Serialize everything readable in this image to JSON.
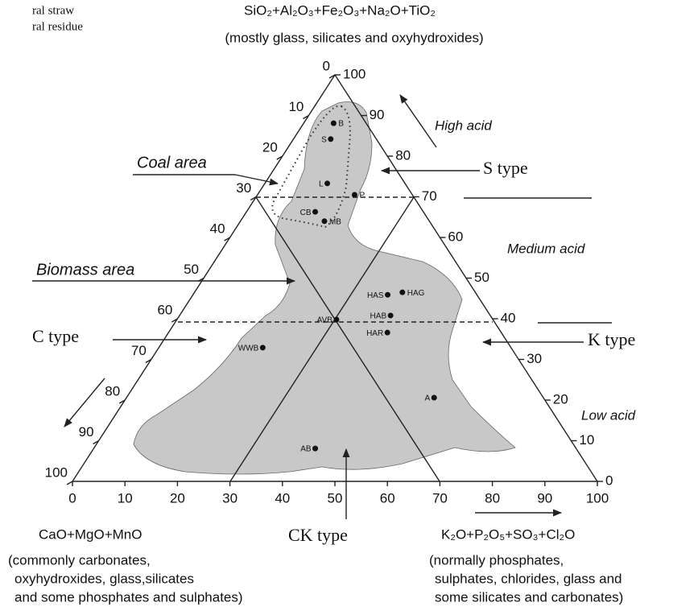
{
  "legend_fragments": [
    "ral straw",
    "ral residue"
  ],
  "top_vertex": {
    "label": "SiO₂+Al₂O₃+Fe₂O₃+Na₂O+TiO₂",
    "description": "(mostly glass, silicates and oxyhydroxides)"
  },
  "left_vertex": {
    "label": "CaO+MgO+MnO",
    "description": [
      "(commonly carbonates,",
      "oxyhydroxides, glass,silicates",
      "and some phosphates and sulphates)"
    ]
  },
  "right_vertex": {
    "label": "K₂O+P₂O₅+SO₃+Cl₂O",
    "description": [
      "(normally phosphates,",
      "sulphates, chlorides, glass and",
      "some silicates and carbonates)"
    ]
  },
  "left_ticks": [
    0,
    10,
    20,
    30,
    40,
    50,
    60,
    70,
    80,
    90,
    100
  ],
  "right_ticks": [
    0,
    10,
    20,
    30,
    40,
    50,
    60,
    70,
    80,
    90,
    100
  ],
  "bottom_ticks": [
    0,
    10,
    20,
    30,
    40,
    50,
    60,
    70,
    80,
    90,
    100
  ],
  "zones": {
    "high": "High acid",
    "medium": "Medium acid",
    "low": "Low acid"
  },
  "areas": {
    "coal": "Coal area",
    "biomass": "Biomass area"
  },
  "types": {
    "s": "S type",
    "c": "C type",
    "k": "K type",
    "ck": "CK type"
  },
  "points": [
    {
      "label": "B",
      "top": 88.1,
      "right": 5.7
    },
    {
      "label": "S",
      "top": 84.2,
      "right": 7.1
    },
    {
      "label": "L",
      "top": 73.3,
      "right": 11.9
    },
    {
      "label": "P",
      "top": 70.5,
      "right": 18.5
    },
    {
      "label": "CB",
      "top": 66.3,
      "right": 13.1
    },
    {
      "label": "MB",
      "top": 64.0,
      "right": 16.0
    },
    {
      "label": "HAS",
      "top": 45.9,
      "right": 37.1
    },
    {
      "label": "HAG",
      "top": 46.5,
      "right": 39.6
    },
    {
      "label": "AVB",
      "top": 39.8,
      "right": 30.4
    },
    {
      "label": "HAB",
      "top": 40.8,
      "right": 40.2
    },
    {
      "label": "HAR",
      "top": 36.6,
      "right": 41.7
    },
    {
      "label": "WWB",
      "top": 32.9,
      "right": 19.8
    },
    {
      "label": "A",
      "top": 20.6,
      "right": 58.6
    },
    {
      "label": "AB",
      "top": 8.1,
      "right": 42.2
    }
  ]
}
